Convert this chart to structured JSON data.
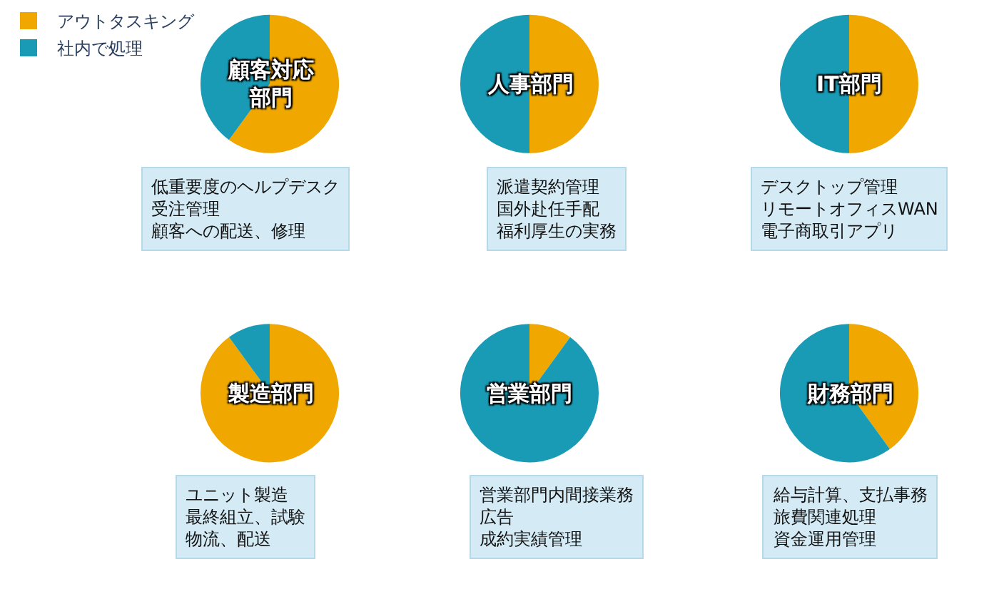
{
  "chart_data": [
    {
      "type": "pie",
      "title": "顧客対応部門",
      "categories": [
        "アウトタスキング",
        "社内で処理"
      ],
      "values": [
        60,
        40
      ],
      "colors": [
        "#f0a800",
        "#1a9bb5"
      ],
      "legend": "top left",
      "annotations": [
        "低重要度のヘルプデスク",
        "受注管理",
        "顧客への配送、修理"
      ]
    },
    {
      "type": "pie",
      "title": "人事部門",
      "values": [
        50,
        50
      ],
      "colors": [
        "#f0a800",
        "#1a9bb5"
      ],
      "annotations": [
        "派遣契約管理",
        "国外赴任手配",
        "福利厚生の実務"
      ]
    },
    {
      "type": "pie",
      "title": "IT部門",
      "values": [
        50,
        50
      ],
      "colors": [
        "#f0a800",
        "#1a9bb5"
      ],
      "annotations": [
        "デスクトップ管理",
        "リモートオフィスWAN",
        "電子商取引アプリ"
      ]
    },
    {
      "type": "pie",
      "title": "製造部門",
      "values": [
        90,
        10
      ],
      "colors": [
        "#f0a800",
        "#1a9bb5"
      ],
      "annotations": [
        "ユニット製造",
        "最終組立、試験",
        "物流、配送"
      ]
    },
    {
      "type": "pie",
      "title": "営業部門",
      "values": [
        10,
        90
      ],
      "colors": [
        "#f0a800",
        "#1a9bb5"
      ],
      "annotations": [
        "営業部門内間接業務",
        "広告",
        "成約実績管理"
      ]
    },
    {
      "type": "pie",
      "title": "財務部門",
      "values": [
        40,
        60
      ],
      "colors": [
        "#f0a800",
        "#1a9bb5"
      ],
      "annotations": [
        "給与計算、支払事務",
        "旅費関連処理",
        "資金運用管理"
      ]
    }
  ]
}
